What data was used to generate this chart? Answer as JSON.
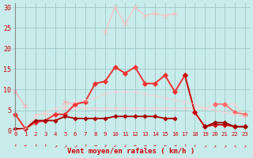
{
  "xlabel": "Vent moyen/en rafales ( km/h )",
  "background_color": "#c8ecec",
  "grid_color": "#a0c8c8",
  "series": [
    {
      "comment": "light pink wide - nearly flat around 5-6, spanning 0-23",
      "color": "#ffaaaa",
      "alpha": 0.85,
      "linewidth": 1.0,
      "marker": "x",
      "markersize": 4,
      "y": [
        9.5,
        6.0,
        null,
        null,
        null,
        7.0,
        6.5,
        7.0,
        null,
        null,
        null,
        null,
        null,
        null,
        null,
        null,
        null,
        null,
        null,
        null,
        null,
        null,
        null,
        null
      ]
    },
    {
      "comment": "light pink - big arch going up to 30 in middle",
      "color": "#ffbbbb",
      "alpha": 0.8,
      "linewidth": 1.0,
      "marker": "x",
      "markersize": 4,
      "y": [
        null,
        null,
        null,
        null,
        null,
        null,
        null,
        null,
        null,
        24.0,
        30.0,
        26.0,
        30.0,
        28.0,
        28.5,
        28.0,
        28.5,
        null,
        null,
        null,
        null,
        null,
        null,
        null
      ]
    },
    {
      "comment": "flat pink line ~5.5 spanning most of x",
      "color": "#ffcccc",
      "alpha": 0.75,
      "linewidth": 1.0,
      "marker": "x",
      "markersize": 3,
      "y": [
        null,
        null,
        4.0,
        4.0,
        4.0,
        5.5,
        5.5,
        5.5,
        5.5,
        5.5,
        5.5,
        5.5,
        5.5,
        5.5,
        5.5,
        5.5,
        5.5,
        5.5,
        5.5,
        5.5,
        6.5,
        6.5,
        6.5,
        4.0
      ]
    },
    {
      "comment": "medium red line - main arch 0-17",
      "color": "#ee3333",
      "alpha": 1.0,
      "linewidth": 1.4,
      "marker": "D",
      "markersize": 3,
      "y": [
        4.0,
        0.5,
        2.0,
        2.5,
        4.0,
        4.0,
        6.5,
        7.0,
        11.5,
        12.0,
        15.5,
        14.0,
        15.5,
        11.5,
        11.5,
        13.5,
        9.5,
        13.5,
        null,
        null,
        null,
        null,
        null,
        null
      ]
    },
    {
      "comment": "dark red line continuing from 17 going down right side",
      "color": "#cc0000",
      "alpha": 1.0,
      "linewidth": 1.4,
      "marker": "D",
      "markersize": 3,
      "y": [
        null,
        null,
        null,
        null,
        null,
        null,
        null,
        null,
        null,
        null,
        null,
        null,
        null,
        null,
        null,
        null,
        null,
        13.5,
        4.5,
        1.0,
        1.5,
        1.5,
        1.0,
        1.0
      ]
    },
    {
      "comment": "dark red bottom line from 0 to 16",
      "color": "#aa0000",
      "alpha": 1.0,
      "linewidth": 1.3,
      "marker": "D",
      "markersize": 2.5,
      "y": [
        0.5,
        0.5,
        2.5,
        2.5,
        2.5,
        3.5,
        3.0,
        3.0,
        3.0,
        3.0,
        3.5,
        3.5,
        3.5,
        3.5,
        3.5,
        3.0,
        3.0,
        null,
        null,
        null,
        null,
        null,
        null,
        null
      ]
    },
    {
      "comment": "dark red right side small values 19-23",
      "color": "#990000",
      "alpha": 1.0,
      "linewidth": 1.2,
      "marker": "D",
      "markersize": 2.5,
      "y": [
        null,
        null,
        null,
        null,
        null,
        null,
        null,
        null,
        null,
        null,
        null,
        null,
        null,
        null,
        null,
        null,
        null,
        null,
        null,
        1.0,
        2.0,
        2.0,
        1.0,
        1.0
      ]
    },
    {
      "comment": "pink right side 20-23",
      "color": "#ff6666",
      "alpha": 0.9,
      "linewidth": 1.2,
      "marker": "D",
      "markersize": 3,
      "y": [
        null,
        null,
        null,
        null,
        null,
        null,
        null,
        null,
        null,
        null,
        null,
        null,
        null,
        null,
        null,
        null,
        null,
        null,
        null,
        null,
        6.5,
        6.5,
        4.5,
        4.0
      ]
    },
    {
      "comment": "very light pink big arch full span",
      "color": "#ffcccc",
      "alpha": 0.6,
      "linewidth": 1.0,
      "marker": "x",
      "markersize": 3,
      "y": [
        0.0,
        0.5,
        3.5,
        4.5,
        5.5,
        6.0,
        7.0,
        7.5,
        8.0,
        9.0,
        9.5,
        9.5,
        9.5,
        9.0,
        8.5,
        8.0,
        7.5,
        7.0,
        6.5,
        5.5,
        5.0,
        4.5,
        4.0,
        3.5
      ]
    }
  ],
  "ylim": [
    0,
    31
  ],
  "yticks": [
    0,
    5,
    10,
    15,
    20,
    25,
    30
  ],
  "xlim": [
    -0.3,
    23.5
  ],
  "x_labels": [
    "0",
    "1",
    "2",
    "3",
    "4",
    "5",
    "6",
    "7",
    "8",
    "9",
    "10",
    "11",
    "12",
    "13",
    "14",
    "15",
    "16",
    "17",
    "18",
    "19",
    "20",
    "21",
    "22",
    "23"
  ]
}
